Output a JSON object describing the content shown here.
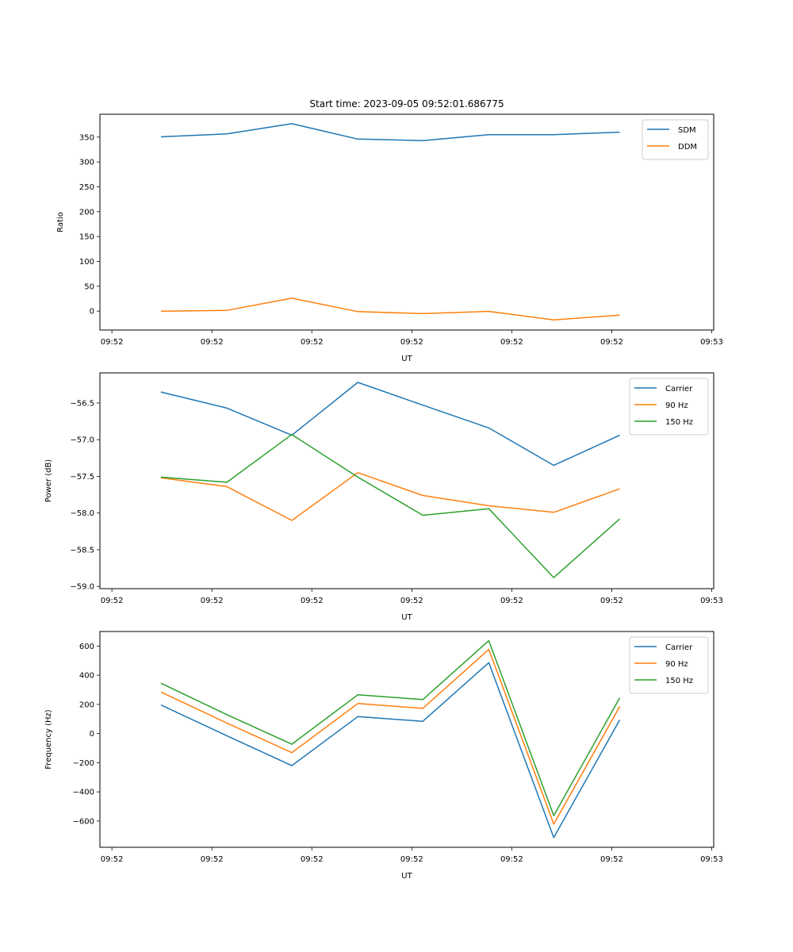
{
  "figure": {
    "title": "Start time: 2023-09-05 09:52:01.686775"
  },
  "chart_data": [
    {
      "type": "line",
      "title": "Start time: 2023-09-05 09:52:01.686775",
      "xlabel": "UT",
      "ylabel": "Ratio",
      "x_unit": "seconds after 09:52:00",
      "x": [
        4.9,
        11.5,
        18.0,
        24.6,
        31.1,
        37.7,
        44.2,
        50.8
      ],
      "xlim": [
        -1.2,
        60.2
      ],
      "xticks": [
        0,
        10,
        20,
        30,
        40,
        50,
        60
      ],
      "xtick_labels": [
        "09:52",
        "09:52",
        "09:52",
        "09:52",
        "09:52",
        "09:52",
        "09:53"
      ],
      "ylim": [
        -38,
        396
      ],
      "yticks": [
        0,
        50,
        100,
        150,
        200,
        250,
        300,
        350
      ],
      "ytick_labels": [
        "0",
        "50",
        "100",
        "150",
        "200",
        "250",
        "300",
        "350"
      ],
      "grid": false,
      "legend_position": "top-right",
      "series": [
        {
          "name": "SDM",
          "color": "#1f77b4",
          "values": [
            350.5,
            356.5,
            377,
            346,
            343,
            355,
            355,
            360
          ]
        },
        {
          "name": "DDM",
          "color": "#ff7f0e",
          "values": [
            0,
            1.6,
            26,
            -1,
            -5,
            -0.5,
            -17.6,
            -8
          ]
        }
      ]
    },
    {
      "type": "line",
      "title": "",
      "xlabel": "UT",
      "ylabel": "Power (dB)",
      "x_unit": "seconds after 09:52:00",
      "x": [
        4.9,
        11.5,
        18.0,
        24.6,
        31.1,
        37.7,
        44.2,
        50.8
      ],
      "xlim": [
        -1.2,
        60.2
      ],
      "xticks": [
        0,
        10,
        20,
        30,
        40,
        50,
        60
      ],
      "xtick_labels": [
        "09:52",
        "09:52",
        "09:52",
        "09:52",
        "09:52",
        "09:52",
        "09:53"
      ],
      "ylim": [
        -59.03,
        -56.09
      ],
      "yticks": [
        -56.5,
        -57.0,
        -57.5,
        -58.0,
        -58.5,
        -59.0
      ],
      "ytick_labels": [
        "−56.5",
        "−57.0",
        "−57.5",
        "−58.0",
        "−58.5",
        "−59.0"
      ],
      "grid": false,
      "legend_position": "top-right",
      "series": [
        {
          "name": "Carrier",
          "color": "#1f77b4",
          "values": [
            -56.35,
            -56.57,
            -56.94,
            -56.22,
            -56.53,
            -56.84,
            -57.35,
            -56.94
          ]
        },
        {
          "name": "90 Hz",
          "color": "#ff7f0e",
          "values": [
            -57.52,
            -57.64,
            -58.1,
            -57.45,
            -57.76,
            -57.9,
            -57.99,
            -57.67
          ]
        },
        {
          "name": "150 Hz",
          "color": "#2ca02c",
          "values": [
            -57.51,
            -57.58,
            -56.93,
            -57.51,
            -58.03,
            -57.94,
            -58.88,
            -58.08
          ]
        }
      ]
    },
    {
      "type": "line",
      "title": "",
      "xlabel": "UT",
      "ylabel": "Frequency (Hz)",
      "x_unit": "seconds after 09:52:00",
      "x": [
        4.9,
        11.5,
        18.0,
        24.6,
        31.1,
        37.7,
        44.2,
        50.8
      ],
      "xlim": [
        -1.2,
        60.2
      ],
      "xticks": [
        0,
        10,
        20,
        30,
        40,
        50,
        60
      ],
      "xtick_labels": [
        "09:52",
        "09:52",
        "09:52",
        "09:52",
        "09:52",
        "09:52",
        "09:53"
      ],
      "ylim": [
        -780,
        700
      ],
      "yticks": [
        600,
        400,
        200,
        0,
        -200,
        -400,
        -600
      ],
      "ytick_labels": [
        "600",
        "400",
        "200",
        "0",
        "−200",
        "−400",
        "−600"
      ],
      "grid": false,
      "legend_position": "top-right",
      "series": [
        {
          "name": "Carrier",
          "color": "#1f77b4",
          "values": [
            196,
            -15,
            -220,
            116,
            84,
            486,
            -713,
            94
          ]
        },
        {
          "name": "90 Hz",
          "color": "#ff7f0e",
          "values": [
            285,
            72,
            -131,
            206,
            173,
            577,
            -621,
            185
          ]
        },
        {
          "name": "150 Hz",
          "color": "#2ca02c",
          "values": [
            345,
            130,
            -73,
            266,
            233,
            637,
            -563,
            245
          ]
        }
      ]
    }
  ]
}
